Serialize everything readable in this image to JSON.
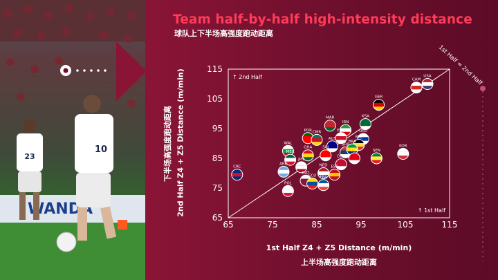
{
  "title": "Team half-by-half high-intensity distance",
  "subtitle": "球队上下半场高强度跑动距离",
  "photo": {
    "jersey_left": "23",
    "jersey_right": "10",
    "board_text": "WANDA"
  },
  "colors": {
    "background": "#6e0d2a",
    "title": "#ff3b57",
    "axis": "#ffffff"
  },
  "chart_data": {
    "type": "scatter",
    "xlabel": "1st Half Z4 + Z5 Distance (m/min)",
    "xlabel_cn": "上半场高强度跑动距离",
    "ylabel": "2nd Half Z4 + Z5 Distance (m/min)",
    "ylabel_cn": "下半场高强度跑动距离",
    "xlim": [
      65,
      115
    ],
    "ylim": [
      65,
      115
    ],
    "xticks": [
      "65",
      "75",
      "85",
      "95",
      "105",
      "115"
    ],
    "yticks": [
      "65",
      "75",
      "85",
      "95",
      "105",
      "115"
    ],
    "diagonal_label": "1st Half = 2nd Half",
    "region_labels": {
      "upper_left": "↑ 2nd Half",
      "lower_right": "↑ 1st Half"
    },
    "points": [
      {
        "label": "USA",
        "x": 110,
        "y": 110,
        "c1": "#b22234",
        "c2": "#ffffff",
        "c3": "#3c3b6e"
      },
      {
        "label": "CAM",
        "x": 107.5,
        "y": 108.8,
        "c1": "#ffffff",
        "c2": "#d52b1e",
        "c3": "#ffffff"
      },
      {
        "label": "GER",
        "x": 99,
        "y": 103,
        "c1": "#000000",
        "c2": "#dd0000",
        "c3": "#ffce00"
      },
      {
        "label": "KSA",
        "x": 96,
        "y": 96.5,
        "c1": "#006c35",
        "c2": "#006c35",
        "c3": "#ffffff"
      },
      {
        "label": "IRN",
        "x": 91.5,
        "y": 94.5,
        "c1": "#239f40",
        "c2": "#ffffff",
        "c3": "#da0000"
      },
      {
        "label": "MAR",
        "x": 88,
        "y": 96,
        "c1": "#c1272d",
        "c2": "#c1272d",
        "c3": "#006233"
      },
      {
        "label": "ENG",
        "x": 90.5,
        "y": 91.8,
        "c1": "#ffffff",
        "c2": "#ce1124",
        "c3": "#ffffff"
      },
      {
        "label": "URU",
        "x": 95.5,
        "y": 91.5,
        "c1": "#ffffff",
        "c2": "#0038a8",
        "c3": "#ffffff"
      },
      {
        "label": "POR",
        "x": 83,
        "y": 91.8,
        "c1": "#006600",
        "c2": "#ff0000",
        "c3": "#ff0000"
      },
      {
        "label": "CMR",
        "x": 85,
        "y": 91.2,
        "c1": "#007a5e",
        "c2": "#ce1126",
        "c3": "#fcd116"
      },
      {
        "label": "AUS",
        "x": 88.5,
        "y": 89,
        "c1": "#00008b",
        "c2": "#00008b",
        "c3": "#ffffff"
      },
      {
        "label": "SRB",
        "x": 91.5,
        "y": 87,
        "c1": "#c6363c",
        "c2": "#0c4076",
        "c3": "#ffffff"
      },
      {
        "label": "BEL",
        "x": 94.5,
        "y": 89.5,
        "c1": "#000000",
        "c2": "#fae042",
        "c3": "#ed2939"
      },
      {
        "label": "BRA",
        "x": 93,
        "y": 88,
        "c1": "#009c3b",
        "c2": "#ffdf00",
        "c3": "#002776"
      },
      {
        "label": "WAL",
        "x": 78.5,
        "y": 87.5,
        "c1": "#ffffff",
        "c2": "#00b140",
        "c3": "#c8102e"
      },
      {
        "label": "GHA",
        "x": 83,
        "y": 86,
        "c1": "#ce1126",
        "c2": "#fcd116",
        "c3": "#006b3f"
      },
      {
        "label": "SUI",
        "x": 87,
        "y": 86,
        "c1": "#ff0000",
        "c2": "#ff0000",
        "c3": "#ffffff"
      },
      {
        "label": "TUN",
        "x": 93.5,
        "y": 85,
        "c1": "#e70013",
        "c2": "#e70013",
        "c3": "#ffffff"
      },
      {
        "label": "SEN",
        "x": 98.5,
        "y": 85,
        "c1": "#00853f",
        "c2": "#fdef42",
        "c3": "#e31b23"
      },
      {
        "label": "KOR",
        "x": 104.5,
        "y": 86.5,
        "c1": "#ffffff",
        "c2": "#ffffff",
        "c3": "#cd2e3a"
      },
      {
        "label": "MEX",
        "x": 79,
        "y": 84.5,
        "c1": "#006847",
        "c2": "#ffffff",
        "c3": "#ce1126"
      },
      {
        "label": "JPN",
        "x": 81.5,
        "y": 82,
        "c1": "#ffffff",
        "c2": "#ffffff",
        "c3": "#bc002d"
      },
      {
        "label": "ARG",
        "x": 77.5,
        "y": 80.5,
        "c1": "#74acdf",
        "c2": "#ffffff",
        "c3": "#74acdf"
      },
      {
        "label": "DEN",
        "x": 90.5,
        "y": 83,
        "c1": "#c60c30",
        "c2": "#c60c30",
        "c3": "#ffffff"
      },
      {
        "label": "NED",
        "x": 86.5,
        "y": 80,
        "c1": "#ae1c28",
        "c2": "#ffffff",
        "c3": "#21468b"
      },
      {
        "label": "ESP",
        "x": 89,
        "y": 79.5,
        "c1": "#c60b1e",
        "c2": "#ffc400",
        "c3": "#c60b1e"
      },
      {
        "label": "QAT",
        "x": 82.5,
        "y": 77.5,
        "c1": "#ffffff",
        "c2": "#8a1538",
        "c3": "#8a1538"
      },
      {
        "label": "ECU",
        "x": 84,
        "y": 76.5,
        "c1": "#ffdd00",
        "c2": "#034ea2",
        "c3": "#ed1c24"
      },
      {
        "label": "FRA",
        "x": 86.5,
        "y": 76,
        "c1": "#0055a4",
        "c2": "#ffffff",
        "c3": "#ef4135"
      },
      {
        "label": "POL",
        "x": 78.5,
        "y": 74,
        "c1": "#ffffff",
        "c2": "#ffffff",
        "c3": "#dc143c"
      },
      {
        "label": "CRC",
        "x": 67,
        "y": 79.5,
        "c1": "#002b7f",
        "c2": "#ce1126",
        "c3": "#002b7f"
      }
    ]
  }
}
